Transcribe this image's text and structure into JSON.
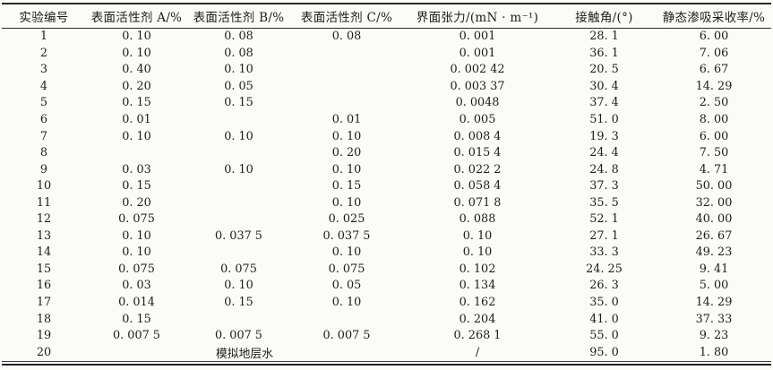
{
  "table": {
    "columns": [
      "实验编号",
      "表面活性剂 A/%",
      "表面活性剂 B/%",
      "表面活性剂 C/%",
      "界面张力/(mN · m⁻¹)",
      "接触角/(°)",
      "静态渗吸采收率/%"
    ],
    "rows": [
      [
        "1",
        "0. 10",
        "0. 08",
        "0. 08",
        "0. 001",
        "28. 1",
        "6. 00"
      ],
      [
        "2",
        "0. 10",
        "0. 08",
        "",
        "0. 001",
        "36. 1",
        "7. 06"
      ],
      [
        "3",
        "0. 40",
        "0. 10",
        "",
        "0. 002 42",
        "20. 5",
        "6. 67"
      ],
      [
        "4",
        "0. 20",
        "0. 05",
        "",
        "0. 003 37",
        "30. 4",
        "14. 29"
      ],
      [
        "5",
        "0. 15",
        "0. 15",
        "",
        "0. 0048",
        "37. 4",
        "2. 50"
      ],
      [
        "6",
        "0. 01",
        "",
        "0. 01",
        "0. 005",
        "51. 0",
        "8. 00"
      ],
      [
        "7",
        "0. 10",
        "0. 10",
        "0. 10",
        "0. 008 4",
        "19. 3",
        "6. 00"
      ],
      [
        "8",
        "",
        "",
        "0. 20",
        "0. 015 4",
        "24. 4",
        "7. 50"
      ],
      [
        "9",
        "0. 03",
        "0. 10",
        "0. 10",
        "0. 022 2",
        "24. 8",
        "4. 71"
      ],
      [
        "10",
        "0. 15",
        "",
        "0. 15",
        "0. 058 4",
        "37. 3",
        "50. 00"
      ],
      [
        "11",
        "0. 20",
        "",
        "0. 10",
        "0. 071 8",
        "35. 5",
        "32. 00"
      ],
      [
        "12",
        "0. 075",
        "",
        "0. 025",
        "0. 088",
        "52. 1",
        "40. 00"
      ],
      [
        "13",
        "0. 10",
        "0. 037 5",
        "0. 037 5",
        "0. 10",
        "27. 1",
        "26. 67"
      ],
      [
        "14",
        "0. 10",
        "",
        "0. 10",
        "0. 10",
        "33. 3",
        "49. 23"
      ],
      [
        "15",
        "0. 075",
        "0. 075",
        "0. 075",
        "0. 102",
        "24. 25",
        "9. 41"
      ],
      [
        "16",
        "0. 03",
        "0. 10",
        "0. 05",
        "0. 134",
        "26. 3",
        "5. 00"
      ],
      [
        "17",
        "0. 014",
        "0. 15",
        "0. 10",
        "0. 162",
        "35. 0",
        "14. 29"
      ],
      [
        "18",
        "0. 15",
        "",
        "",
        "0. 204",
        "41. 0",
        "37. 33"
      ],
      [
        "19",
        "0. 007 5",
        "0. 007 5",
        "0. 007 5",
        "0. 268 1",
        "55. 0",
        "9. 23"
      ],
      [
        "20",
        {
          "text": "模拟地层水",
          "colspan": 3
        },
        "/",
        "95. 0",
        "1. 80"
      ]
    ]
  },
  "colors": {
    "background": "#fbfbf8",
    "text": "#1c1c1c",
    "rule": "#2a2a2a"
  }
}
